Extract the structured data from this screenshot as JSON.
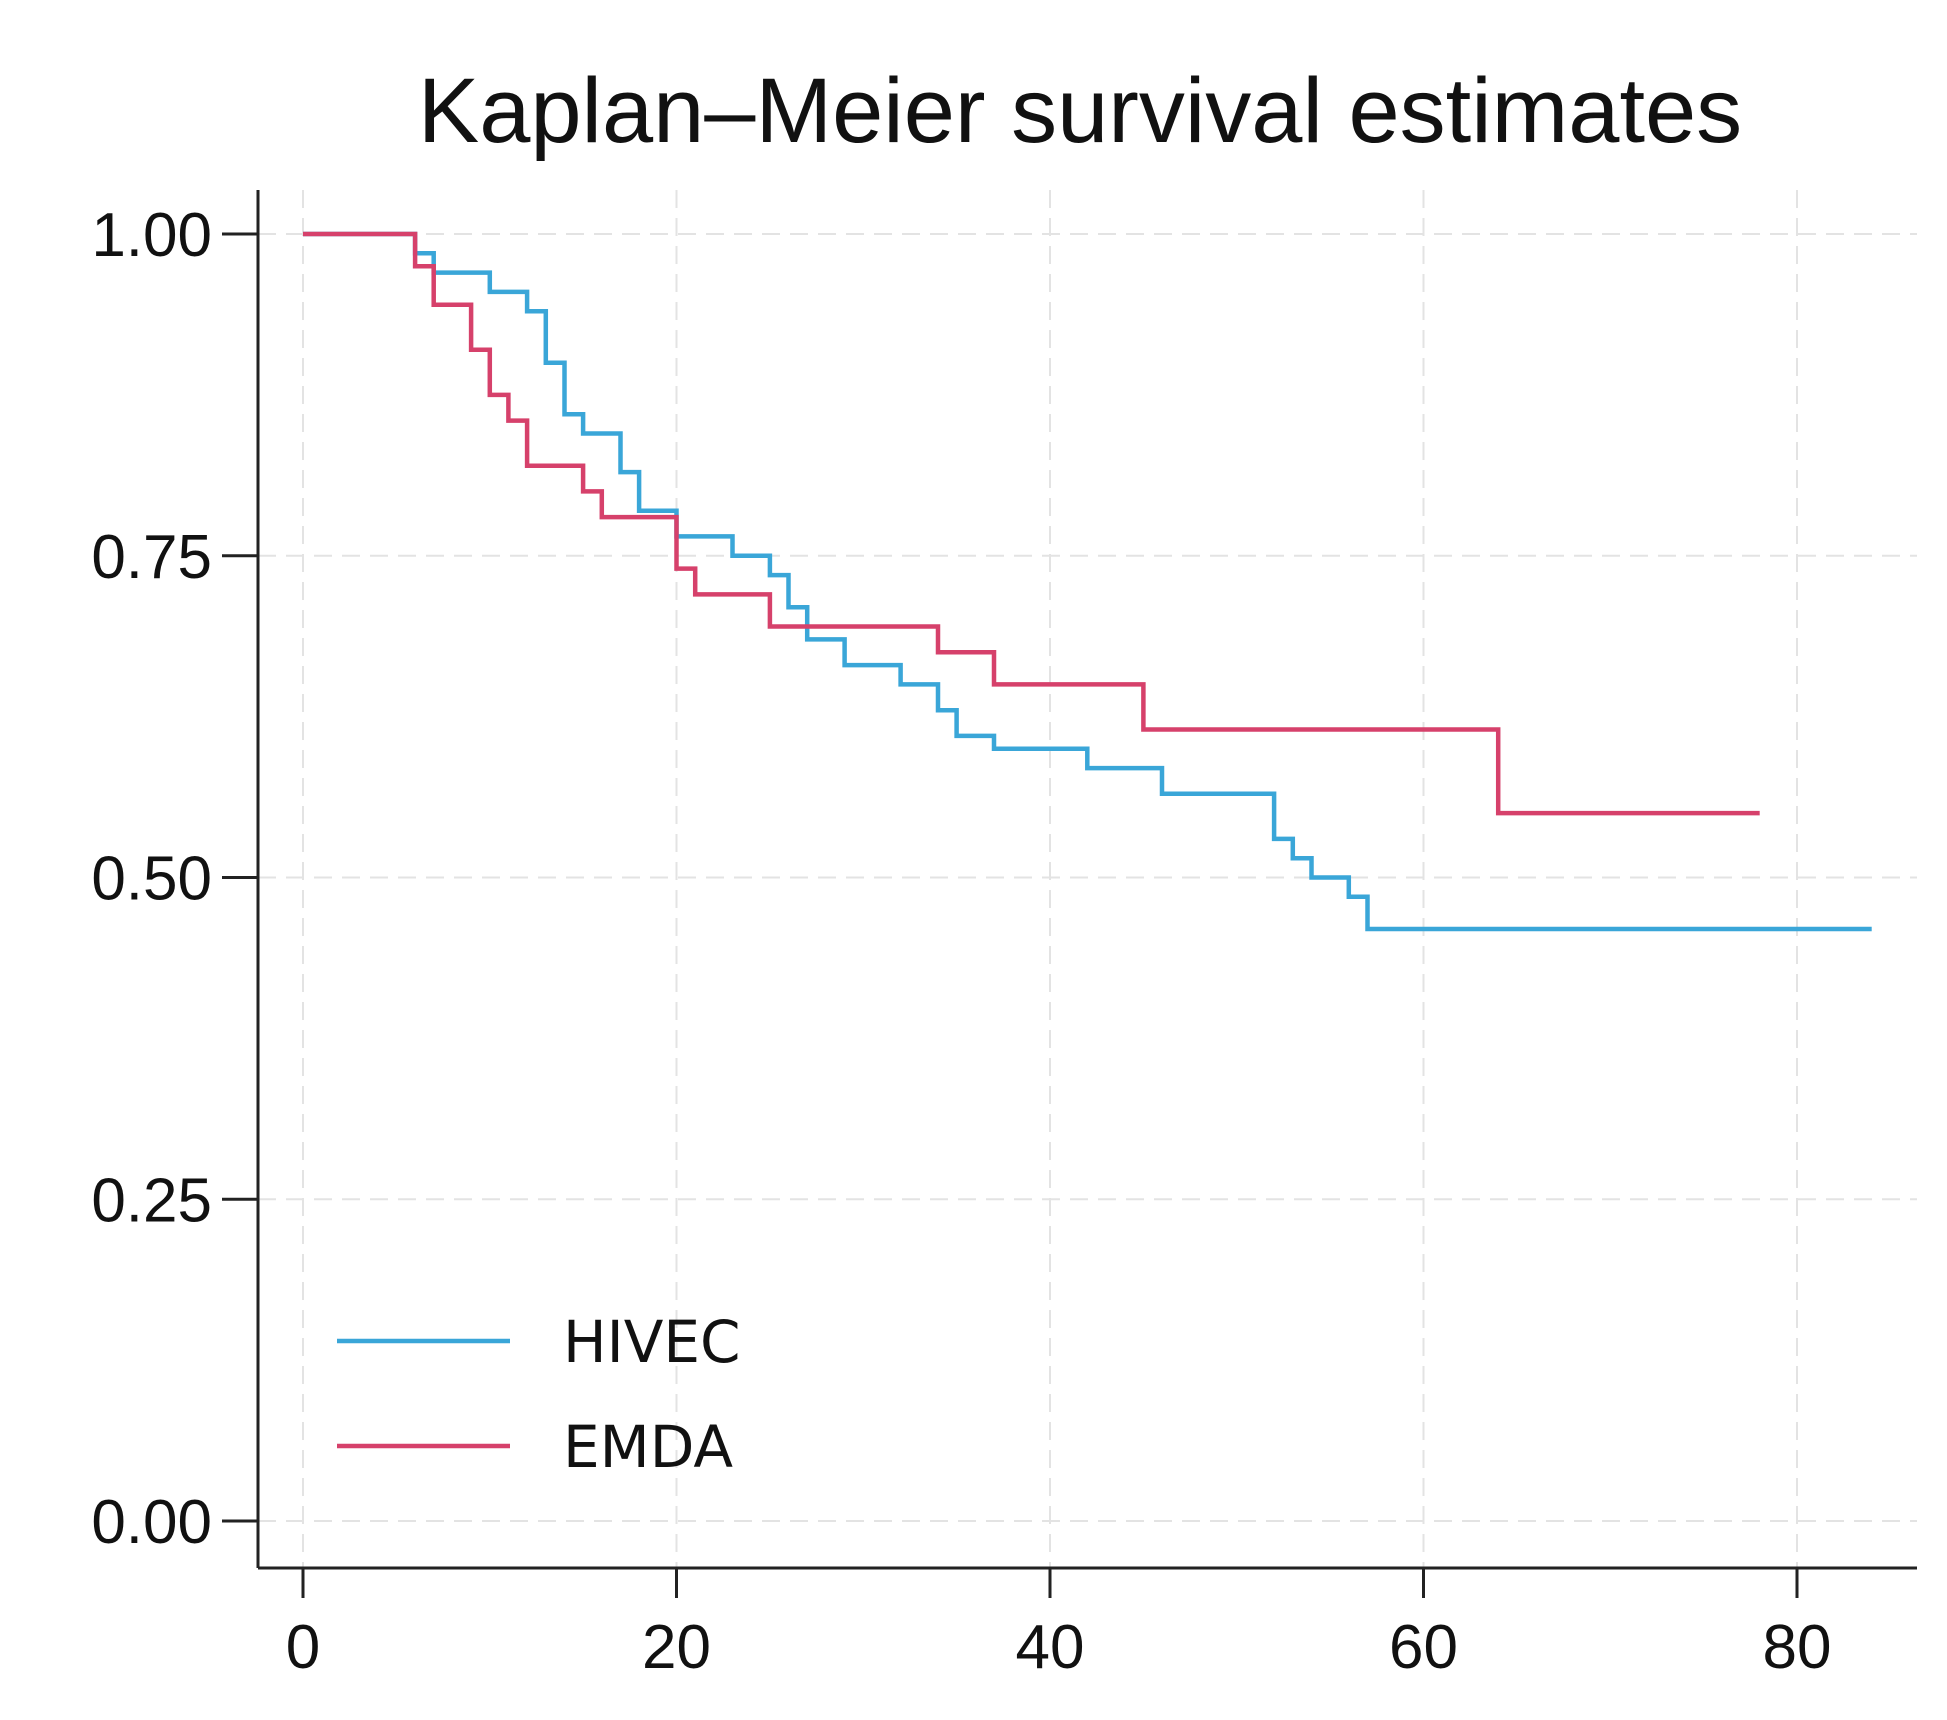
{
  "chart_data": {
    "type": "line",
    "title": "Kaplan–Meier survival estimates",
    "xlabel": "",
    "ylabel": "",
    "xlim": [
      0,
      84
    ],
    "ylim": [
      0,
      1
    ],
    "x_ticks": [
      0,
      20,
      40,
      60,
      80
    ],
    "x_tick_labels": [
      "0",
      "20",
      "40",
      "60",
      "80"
    ],
    "y_ticks": [
      0,
      0.25,
      0.5,
      0.75,
      1
    ],
    "y_tick_labels": [
      "0.00",
      "0.25",
      "0.50",
      "0.75",
      "1.00"
    ],
    "grid": true,
    "legend_position": "bottom-left",
    "series": [
      {
        "name": "HIVEC",
        "color": "#3aa6d8",
        "step": true,
        "x": [
          0,
          6,
          7,
          10,
          12,
          13,
          14,
          15,
          17,
          18,
          20,
          23,
          25,
          26,
          27,
          29,
          32,
          34,
          35,
          37,
          42,
          46,
          52,
          53,
          54,
          56,
          57,
          84
        ],
        "y": [
          1.0,
          0.985,
          0.97,
          0.955,
          0.94,
          0.9,
          0.86,
          0.845,
          0.815,
          0.785,
          0.765,
          0.75,
          0.735,
          0.71,
          0.685,
          0.665,
          0.65,
          0.63,
          0.61,
          0.6,
          0.585,
          0.565,
          0.53,
          0.515,
          0.5,
          0.485,
          0.46,
          0.46
        ]
      },
      {
        "name": "EMDA",
        "color": "#d6416b",
        "step": true,
        "x": [
          0,
          6,
          7,
          9,
          10,
          11,
          12,
          15,
          16,
          20,
          21,
          25,
          34,
          37,
          45,
          64,
          78
        ],
        "y": [
          1.0,
          0.975,
          0.945,
          0.91,
          0.875,
          0.855,
          0.82,
          0.8,
          0.78,
          0.74,
          0.72,
          0.695,
          0.675,
          0.65,
          0.615,
          0.55,
          0.55
        ]
      }
    ]
  }
}
